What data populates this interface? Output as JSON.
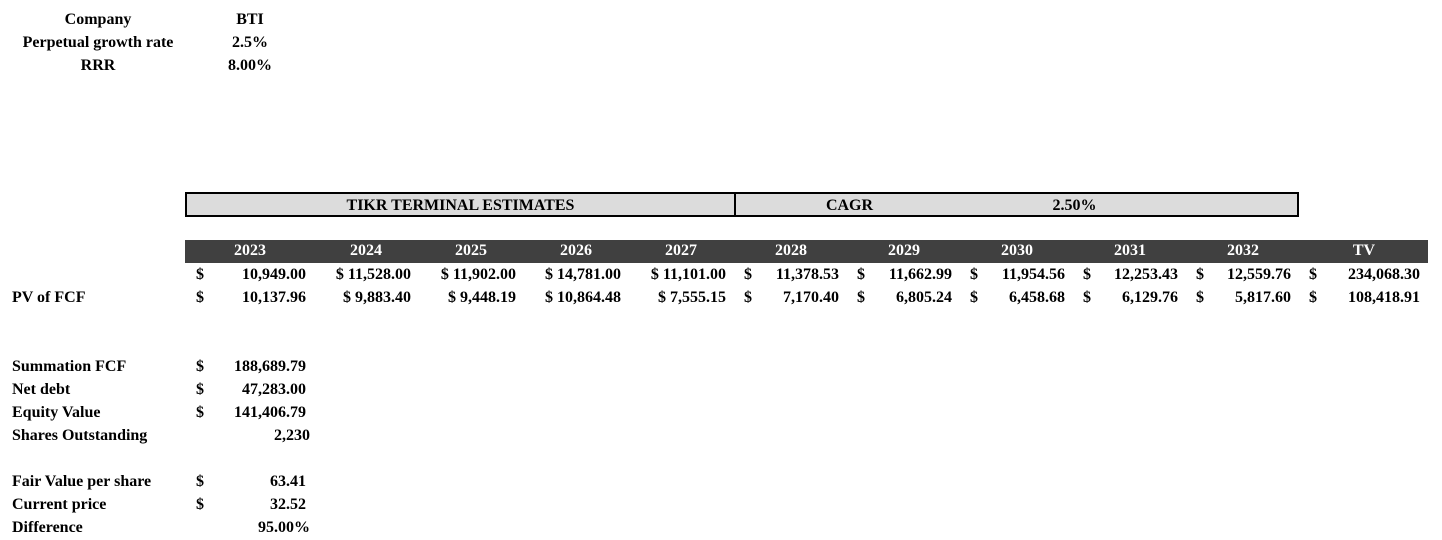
{
  "inputs": {
    "company_label": "Company",
    "company_value": "BTI",
    "growth_label": "Perpetual growth rate",
    "growth_value": "2.5%",
    "rrr_label": "RRR",
    "rrr_value": "8.00%"
  },
  "banner": {
    "title": "TIKR TERMINAL ESTIMATES",
    "cagr_label": "CAGR",
    "cagr_value": "2.50%"
  },
  "years": [
    "2023",
    "2024",
    "2025",
    "2026",
    "2027",
    "2028",
    "2029",
    "2030",
    "2031",
    "2032",
    "TV"
  ],
  "fcf_row": {
    "label": "",
    "values": [
      "$",
      "10,949.00",
      "$ 11,528.00",
      "$ 11,902.00",
      "$ 14,781.00",
      "$ 11,101.00",
      "$",
      "11,378.53",
      "$",
      "11,662.99",
      "$",
      "11,954.56",
      "$",
      "12,253.43",
      "$",
      "12,559.76",
      "$",
      "234,068.30"
    ]
  },
  "pv_row": {
    "label": "PV of FCF",
    "values": [
      "$",
      "10,137.96",
      "$ 9,883.40",
      "$ 9,448.19",
      "$ 10,864.48",
      "$ 7,555.15",
      "$",
      "7,170.40",
      "$",
      "6,805.24",
      "$",
      "6,458.68",
      "$",
      "6,129.76",
      "$",
      "5,817.60",
      "$",
      "108,418.91"
    ]
  },
  "summary": {
    "summation_label": "Summation FCF",
    "summation_cur": "$",
    "summation_value": "188,689.79",
    "net_debt_label": "Net debt",
    "net_debt_cur": "$",
    "net_debt_value": "47,283.00",
    "equity_label": "Equity Value",
    "equity_cur": "$",
    "equity_value": "141,406.79",
    "shares_label": "Shares Outstanding",
    "shares_value": "2,230",
    "fair_label": "Fair Value per share",
    "fair_cur": "$",
    "fair_value": "63.41",
    "price_label": "Current price",
    "price_cur": "$",
    "price_value": "32.52",
    "diff_label": "Difference",
    "diff_value": "95.00%"
  }
}
